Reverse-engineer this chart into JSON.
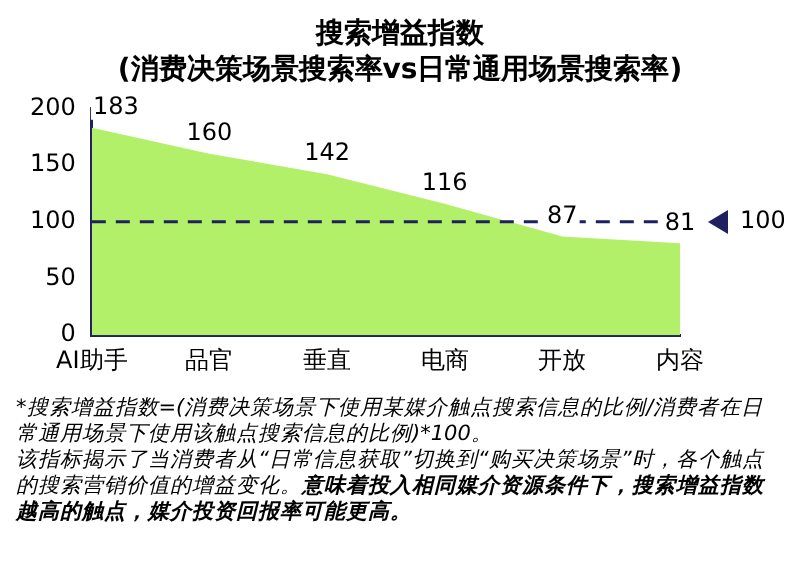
{
  "chart_data": {
    "type": "area",
    "title": "搜索增益指数",
    "subtitle": "(消费决策场景搜索率vs日常通用场景搜索率)",
    "categories": [
      "AI助手",
      "品官",
      "垂直",
      "电商",
      "开放",
      "内容"
    ],
    "values": [
      183,
      160,
      142,
      116,
      87,
      81
    ],
    "color": "#b3f06a",
    "ylim": [
      0,
      200
    ],
    "yticks": [
      0,
      50,
      100,
      150,
      200
    ],
    "grid": false,
    "legend": false,
    "data_labels": true,
    "ref_lines": [
      {
        "axis": "y",
        "value": 100,
        "label": "100",
        "color": "#1f2060",
        "line_style": "dashed"
      }
    ],
    "annotations": [
      "*搜索增益指数=(消费决策场景下使用某媒介触点搜索信息的比例/消费者在日常通用场景下使用该触点搜索信息的比例)*100。",
      "该指标揭示了当消费者从“日常信息获取”切换到“购买决策场景”时，各个触点的搜索营销价值的增益变化。",
      "意味着投入相同媒介资源条件下，搜索增益指数越高的触点，媒介投资回报率可能更高。"
    ]
  }
}
